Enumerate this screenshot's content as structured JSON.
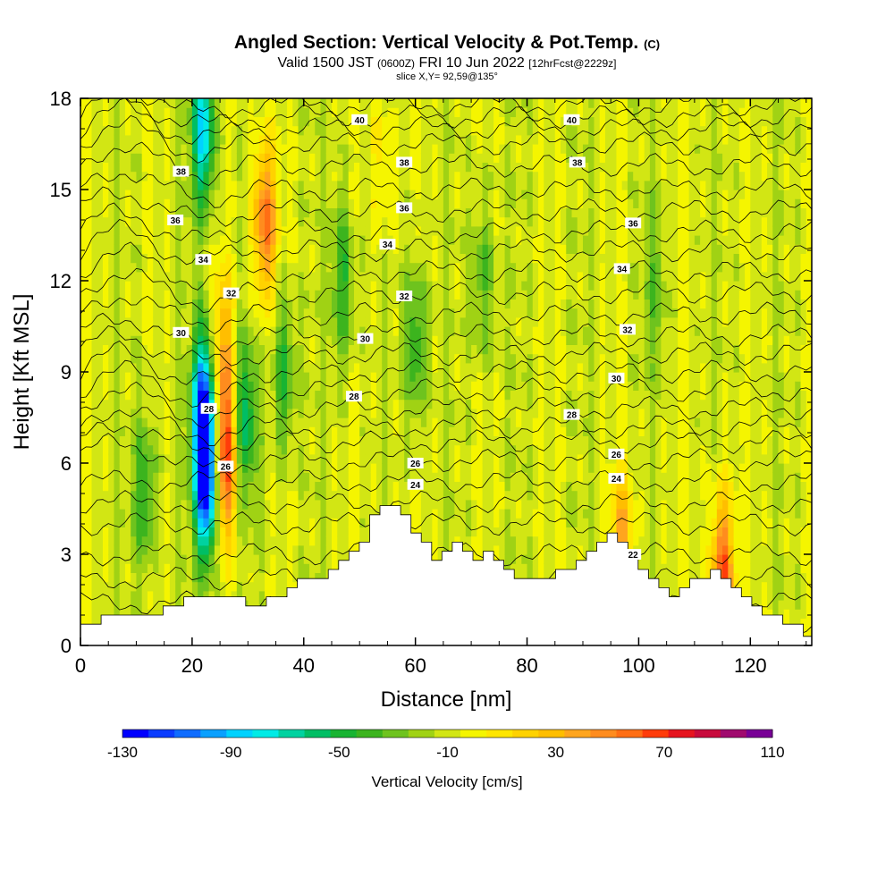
{
  "header": {
    "title_main": "Angled Section: Vertical Velocity & Pot.Temp.",
    "title_tag": "(C)",
    "valid_prefix": "Valid 1500 JST",
    "valid_zulu": "(0600Z)",
    "valid_date": "FRI 10 Jun 2022",
    "forecast": "[12hrFcst@2229z]",
    "slice": "slice X,Y= 92,59@135°"
  },
  "chart_data": {
    "type": "heatmap",
    "xlabel": "Distance [nm]",
    "ylabel": "Height [Kft MSL]",
    "xlim": [
      0,
      131
    ],
    "ylim": [
      0,
      18
    ],
    "x_ticks": [
      "0",
      "20",
      "40",
      "60",
      "80",
      "100",
      "120"
    ],
    "y_ticks": [
      "0",
      "3",
      "6",
      "9",
      "12",
      "15",
      "18"
    ],
    "colorbar": {
      "label": "Vertical Velocity [cm/s]",
      "min": -130,
      "max": 110,
      "step": 10,
      "ticks": [
        "-130",
        "-90",
        "-50",
        "-10",
        "30",
        "70",
        "110"
      ],
      "colors": [
        "#0000ff",
        "#0a3cff",
        "#0f6cff",
        "#0aa0ff",
        "#00d2ff",
        "#00ebe6",
        "#00d2a0",
        "#00be64",
        "#18b432",
        "#3cb41e",
        "#6ec31e",
        "#a0d214",
        "#d2e614",
        "#f5f500",
        "#ffe600",
        "#ffd200",
        "#ffbe00",
        "#ffa51e",
        "#ff8c1e",
        "#ff6e14",
        "#ff3c0a",
        "#e6141e",
        "#c80a3c",
        "#a00a6e",
        "#780096"
      ]
    },
    "features": [
      {
        "x": 11.5,
        "y": 5.0,
        "value": -40
      },
      {
        "x": 22,
        "y": 8.0,
        "value": -90
      },
      {
        "x": 22.5,
        "y": 5.5,
        "value": -120
      },
      {
        "x": 22,
        "y": 17.0,
        "value": -80
      },
      {
        "x": 26,
        "y": 6.2,
        "value": 80
      },
      {
        "x": 25.5,
        "y": 10.0,
        "value": 40
      },
      {
        "x": 29.5,
        "y": 7.5,
        "value": -50
      },
      {
        "x": 33,
        "y": 14.0,
        "value": 70
      },
      {
        "x": 36.5,
        "y": 9.0,
        "value": -40
      },
      {
        "x": 47,
        "y": 12.0,
        "value": -40
      },
      {
        "x": 60,
        "y": 10.0,
        "value": -40
      },
      {
        "x": 72,
        "y": 12.0,
        "value": -30
      },
      {
        "x": 97,
        "y": 3.0,
        "value": 50
      },
      {
        "x": 115,
        "y": 2.3,
        "value": 80
      },
      {
        "x": 103,
        "y": 12.0,
        "value": -20
      },
      {
        "x": 54,
        "y": 16.0,
        "value": 20
      }
    ],
    "terrain_heights": [
      0.7,
      0.7,
      1.0,
      1.0,
      1.0,
      1.0,
      1.0,
      1.0,
      1.3,
      1.3,
      1.6,
      1.6,
      1.6,
      1.6,
      1.6,
      1.6,
      1.3,
      1.3,
      1.6,
      1.6,
      1.9,
      2.2,
      2.2,
      2.2,
      2.5,
      2.8,
      3.1,
      3.4,
      4.3,
      4.6,
      4.6,
      4.3,
      3.7,
      3.4,
      2.8,
      3.1,
      3.4,
      3.1,
      2.8,
      3.1,
      2.8,
      2.5,
      2.2,
      2.2,
      2.2,
      2.2,
      2.5,
      2.5,
      2.8,
      3.1,
      3.4,
      3.7,
      3.4,
      3.1,
      2.5,
      2.2,
      1.9,
      1.6,
      1.9,
      2.2,
      2.2,
      2.5,
      2.2,
      1.9,
      1.6,
      1.3,
      1.0,
      1.0,
      0.7,
      0.7,
      0.3,
      0.3
    ],
    "terrain_dx": 1.85,
    "theta_contours": [
      {
        "label": "22",
        "y": 3.0,
        "lx": 99,
        "ly": 3.0
      },
      {
        "label": "24",
        "y": 5.4,
        "lx": 60,
        "ly": 5.3
      },
      {
        "label": "24",
        "y": 5.4,
        "lx": 96,
        "ly": 5.5
      },
      {
        "label": "26",
        "y": 6.1,
        "lx": 60,
        "ly": 6.0
      },
      {
        "label": "26",
        "y": 6.1,
        "lx": 96,
        "ly": 6.3
      },
      {
        "label": "26",
        "y": 6.1,
        "lx": 26,
        "ly": 5.9
      },
      {
        "label": "28",
        "y": 7.8,
        "lx": 23,
        "ly": 7.8
      },
      {
        "label": "28",
        "y": 7.8,
        "lx": 49,
        "ly": 8.2
      },
      {
        "label": "28",
        "y": 7.8,
        "lx": 88,
        "ly": 7.6
      },
      {
        "label": "30",
        "y": 10.2,
        "lx": 18,
        "ly": 10.3
      },
      {
        "label": "30",
        "y": 10.2,
        "lx": 51,
        "ly": 10.1
      },
      {
        "label": "30",
        "y": 10.2,
        "lx": 96,
        "ly": 8.8
      },
      {
        "label": "32",
        "y": 11.6,
        "lx": 27,
        "ly": 11.6
      },
      {
        "label": "32",
        "y": 11.6,
        "lx": 58,
        "ly": 11.5
      },
      {
        "label": "32",
        "y": 11.6,
        "lx": 98,
        "ly": 10.4
      },
      {
        "label": "34",
        "y": 13.0,
        "lx": 22,
        "ly": 12.7
      },
      {
        "label": "34",
        "y": 13.0,
        "lx": 55,
        "ly": 13.2
      },
      {
        "label": "34",
        "y": 13.0,
        "lx": 97,
        "ly": 12.4
      },
      {
        "label": "36",
        "y": 14.3,
        "lx": 17,
        "ly": 14.0
      },
      {
        "label": "36",
        "y": 14.3,
        "lx": 58,
        "ly": 14.4
      },
      {
        "label": "36",
        "y": 14.3,
        "lx": 99,
        "ly": 13.9
      },
      {
        "label": "38",
        "y": 15.8,
        "lx": 18,
        "ly": 15.6
      },
      {
        "label": "38",
        "y": 15.8,
        "lx": 58,
        "ly": 15.9
      },
      {
        "label": "38",
        "y": 15.8,
        "lx": 89,
        "ly": 15.9
      },
      {
        "label": "40",
        "y": 17.4,
        "lx": 50,
        "ly": 17.3
      },
      {
        "label": "40",
        "y": 17.4,
        "lx": 88,
        "ly": 17.3
      }
    ]
  }
}
